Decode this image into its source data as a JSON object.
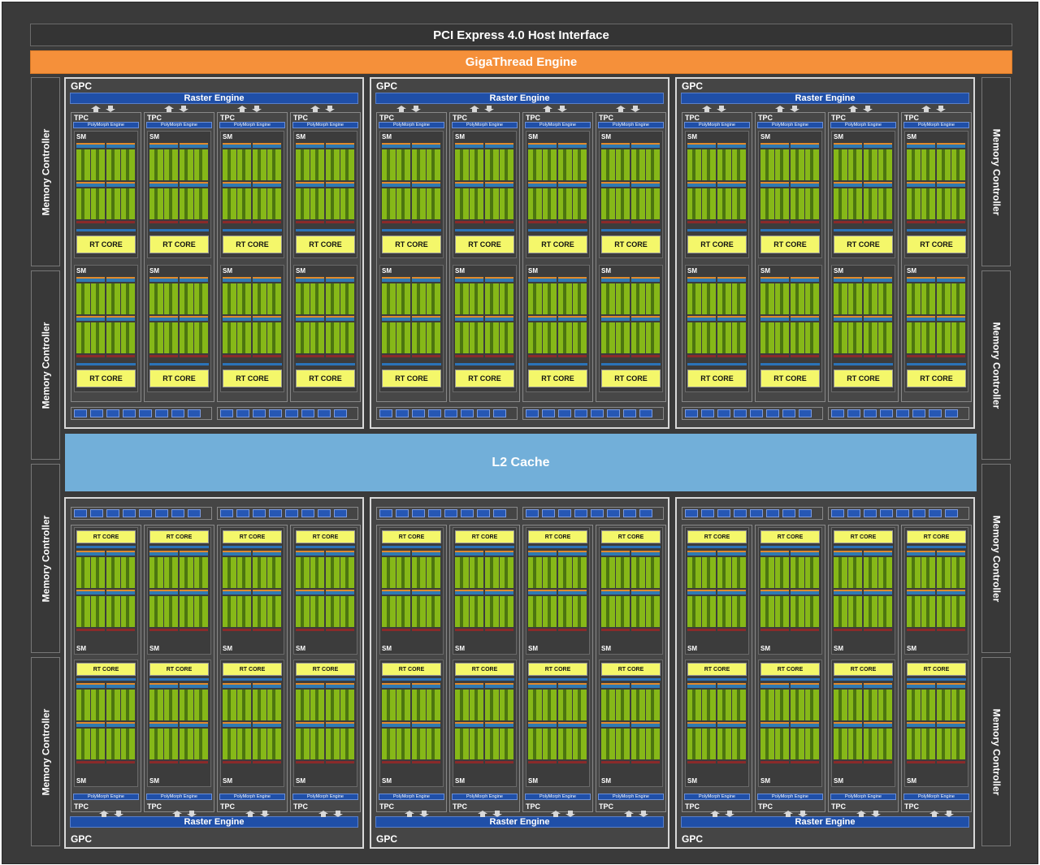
{
  "pcie_label": "PCI Express 4.0 Host Interface",
  "gigathread_label": "GigaThread Engine",
  "l2_label": "L2 Cache",
  "memory_controller_label": "Memory Controller",
  "gpc_label": "GPC",
  "raster_engine_label": "Raster Engine",
  "tpc_label": "TPC",
  "polymorph_label": "PolyMorph Engine",
  "sm_label": "SM",
  "rt_core_label": "RT CORE",
  "colors": {
    "background": "#3a3a3a",
    "gigathread": "#f5903a",
    "l2_cache": "#72afd9",
    "raster_engine": "#1f4fa8",
    "rt_core": "#f4f76a",
    "cuda_core": "#86b818",
    "border": "#d8d8d8"
  },
  "layout": {
    "gpc_count": 6,
    "tpc_per_gpc": 4,
    "sm_per_tpc": 2,
    "memory_controller_count": 8
  }
}
